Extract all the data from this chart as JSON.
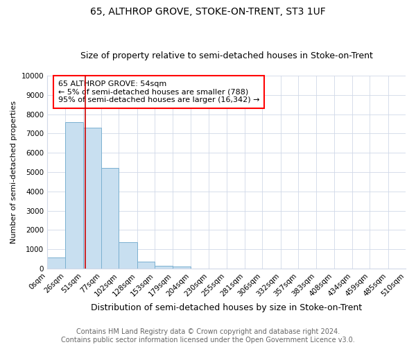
{
  "title": "65, ALTHROP GROVE, STOKE-ON-TRENT, ST3 1UF",
  "subtitle": "Size of property relative to semi-detached houses in Stoke-on-Trent",
  "xlabel": "Distribution of semi-detached houses by size in Stoke-on-Trent",
  "ylabel": "Number of semi-detached properties",
  "footnote1": "Contains HM Land Registry data © Crown copyright and database right 2024.",
  "footnote2": "Contains public sector information licensed under the Open Government Licence v3.0.",
  "annotation_title": "65 ALTHROP GROVE: 54sqm",
  "annotation_line2": "← 5% of semi-detached houses are smaller (788)",
  "annotation_line3": "95% of semi-detached houses are larger (16,342) →",
  "property_size": 54,
  "bin_edges": [
    0,
    26,
    51,
    77,
    102,
    128,
    153,
    179,
    204,
    230,
    255,
    281,
    306,
    332,
    357,
    383,
    408,
    434,
    459,
    485,
    510
  ],
  "bar_heights": [
    560,
    7600,
    7300,
    5200,
    1350,
    340,
    160,
    120,
    0,
    0,
    0,
    0,
    0,
    0,
    0,
    0,
    0,
    0,
    0,
    0
  ],
  "bar_color": "#c8dff0",
  "bar_edge_color": "#7ab0d0",
  "vline_color": "#cc0000",
  "vline_x": 54,
  "ylim": [
    0,
    10000
  ],
  "yticks": [
    0,
    1000,
    2000,
    3000,
    4000,
    5000,
    6000,
    7000,
    8000,
    9000,
    10000
  ],
  "background_color": "#ffffff",
  "grid_color": "#d0d8e8",
  "title_fontsize": 10,
  "subtitle_fontsize": 9,
  "xlabel_fontsize": 9,
  "ylabel_fontsize": 8,
  "tick_fontsize": 7.5,
  "annotation_fontsize": 8,
  "footnote_fontsize": 7
}
